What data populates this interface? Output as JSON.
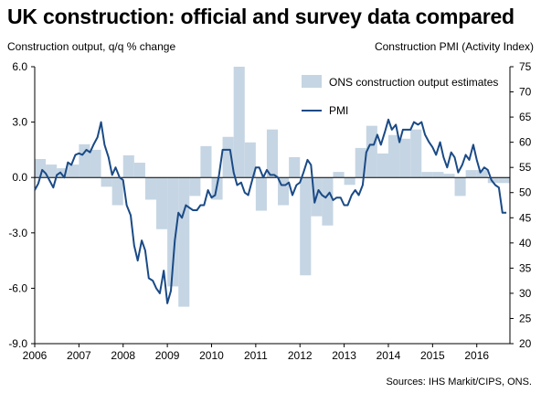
{
  "title": "UK construction: official and survey data compared",
  "left_axis_title": "Construction output, q/q % change",
  "right_axis_title": "Construction PMI (Activity  Index)",
  "source": "Sources: IHS Markit/CIPS,  ONS.",
  "colors": {
    "bar": "#c5d5e3",
    "line": "#1a4a86",
    "zero_line": "#000000"
  },
  "chart_data": {
    "type": "bar+line",
    "title": "UK construction: official and survey data compared",
    "left_axis": {
      "label": "Construction output, q/q % change",
      "range": [
        -9.0,
        6.0
      ],
      "ticks": [
        "6.0",
        "3.0",
        "0.0",
        "-3.0",
        "-6.0",
        "-9.0"
      ]
    },
    "right_axis": {
      "label": "Construction PMI (Activity  Index)",
      "range": [
        20,
        75
      ],
      "ticks": [
        "75",
        "70",
        "65",
        "60",
        "55",
        "50",
        "45",
        "40",
        "35",
        "30",
        "25",
        "20"
      ]
    },
    "x_axis": {
      "range": [
        2006.0,
        2016.75
      ],
      "ticks": [
        "2006",
        "2007",
        "2008",
        "2009",
        "2010",
        "2011",
        "2012",
        "2013",
        "2014",
        "2015",
        "2016"
      ]
    },
    "legend": [
      "ONS construction output estimates",
      "PMI"
    ],
    "legend_position": "top-right",
    "series": [
      {
        "name": "ONS construction output estimates",
        "type": "bar",
        "axis": "left",
        "x": [
          2006.0,
          2006.25,
          2006.5,
          2006.75,
          2007.0,
          2007.25,
          2007.5,
          2007.75,
          2008.0,
          2008.25,
          2008.5,
          2008.75,
          2009.0,
          2009.25,
          2009.5,
          2009.75,
          2010.0,
          2010.25,
          2010.5,
          2010.75,
          2011.0,
          2011.25,
          2011.5,
          2011.75,
          2012.0,
          2012.25,
          2012.5,
          2012.75,
          2013.0,
          2013.25,
          2013.5,
          2013.75,
          2014.0,
          2014.25,
          2014.5,
          2014.75,
          2015.0,
          2015.25,
          2015.5,
          2015.75,
          2016.0,
          2016.25,
          2016.5
        ],
        "values": [
          1.0,
          0.7,
          0.5,
          0.7,
          1.8,
          1.5,
          -0.5,
          -1.5,
          1.2,
          0.8,
          -1.2,
          -2.8,
          -5.9,
          -7.0,
          -1.0,
          1.7,
          -1.2,
          2.2,
          6.0,
          1.9,
          -1.8,
          2.6,
          -1.5,
          1.1,
          -5.3,
          -2.1,
          -2.6,
          0.3,
          -0.4,
          1.6,
          2.8,
          1.3,
          2.3,
          2.1,
          2.6,
          0.3,
          0.3,
          0.2,
          -1.0,
          0.4,
          0.4,
          -0.3,
          -0.3
        ]
      },
      {
        "name": "PMI",
        "type": "line",
        "axis": "right",
        "x": [
          2006.0,
          2006.08,
          2006.17,
          2006.25,
          2006.33,
          2006.42,
          2006.5,
          2006.58,
          2006.67,
          2006.75,
          2006.83,
          2006.92,
          2007.0,
          2007.08,
          2007.17,
          2007.25,
          2007.33,
          2007.42,
          2007.5,
          2007.58,
          2007.67,
          2007.75,
          2007.83,
          2007.92,
          2008.0,
          2008.08,
          2008.17,
          2008.25,
          2008.33,
          2008.42,
          2008.5,
          2008.58,
          2008.67,
          2008.75,
          2008.83,
          2008.92,
          2009.0,
          2009.08,
          2009.17,
          2009.25,
          2009.33,
          2009.42,
          2009.5,
          2009.58,
          2009.67,
          2009.75,
          2009.83,
          2009.92,
          2010.0,
          2010.08,
          2010.17,
          2010.25,
          2010.33,
          2010.42,
          2010.5,
          2010.58,
          2010.67,
          2010.75,
          2010.83,
          2010.92,
          2011.0,
          2011.08,
          2011.17,
          2011.25,
          2011.33,
          2011.42,
          2011.5,
          2011.58,
          2011.67,
          2011.75,
          2011.83,
          2011.92,
          2012.0,
          2012.08,
          2012.17,
          2012.25,
          2012.33,
          2012.42,
          2012.5,
          2012.58,
          2012.67,
          2012.75,
          2012.83,
          2012.92,
          2013.0,
          2013.08,
          2013.17,
          2013.25,
          2013.33,
          2013.42,
          2013.5,
          2013.58,
          2013.67,
          2013.75,
          2013.83,
          2013.92,
          2014.0,
          2014.08,
          2014.17,
          2014.25,
          2014.33,
          2014.42,
          2014.5,
          2014.58,
          2014.67,
          2014.75,
          2014.83,
          2014.92,
          2015.0,
          2015.08,
          2015.17,
          2015.25,
          2015.33,
          2015.42,
          2015.5,
          2015.58,
          2015.67,
          2015.75,
          2015.83,
          2015.92,
          2016.0,
          2016.08,
          2016.17,
          2016.25,
          2016.33,
          2016.42,
          2016.5,
          2016.58,
          2016.67
        ],
        "values": [
          50.5,
          51.8,
          54.5,
          53.8,
          52.5,
          51.0,
          53.5,
          54.0,
          53.0,
          56.0,
          55.5,
          57.5,
          57.8,
          57.5,
          58.5,
          58.0,
          59.5,
          61.0,
          64.0,
          59.5,
          57.0,
          53.5,
          55.0,
          53.0,
          52.5,
          47.5,
          45.5,
          39.5,
          36.5,
          40.5,
          38.5,
          33.0,
          32.5,
          31.0,
          30.0,
          34.5,
          28.0,
          30.5,
          40.5,
          46.0,
          45.0,
          47.5,
          47.0,
          46.5,
          46.5,
          47.5,
          47.5,
          50.5,
          49.0,
          49.5,
          53.5,
          58.5,
          58.5,
          58.5,
          54.0,
          51.5,
          52.0,
          50.0,
          49.5,
          52.5,
          55.0,
          55.0,
          53.0,
          54.5,
          53.5,
          53.5,
          53.0,
          51.5,
          51.5,
          52.0,
          49.5,
          51.5,
          52.0,
          54.0,
          56.5,
          55.5,
          48.0,
          50.5,
          49.5,
          49.0,
          50.0,
          48.5,
          49.0,
          49.0,
          47.5,
          47.5,
          49.5,
          50.5,
          49.5,
          51.5,
          58.0,
          59.5,
          59.5,
          61.5,
          59.5,
          62.0,
          64.5,
          62.5,
          63.5,
          60.0,
          62.5,
          62.5,
          62.5,
          64.0,
          63.5,
          64.0,
          61.5,
          60.0,
          59.0,
          57.5,
          60.0,
          57.0,
          55.0,
          58.0,
          57.0,
          54.0,
          55.5,
          57.5,
          56.5,
          59.5,
          56.5,
          54.0,
          55.0,
          54.5,
          52.5,
          51.5,
          51.0,
          46.0,
          46.0
        ]
      }
    ]
  }
}
